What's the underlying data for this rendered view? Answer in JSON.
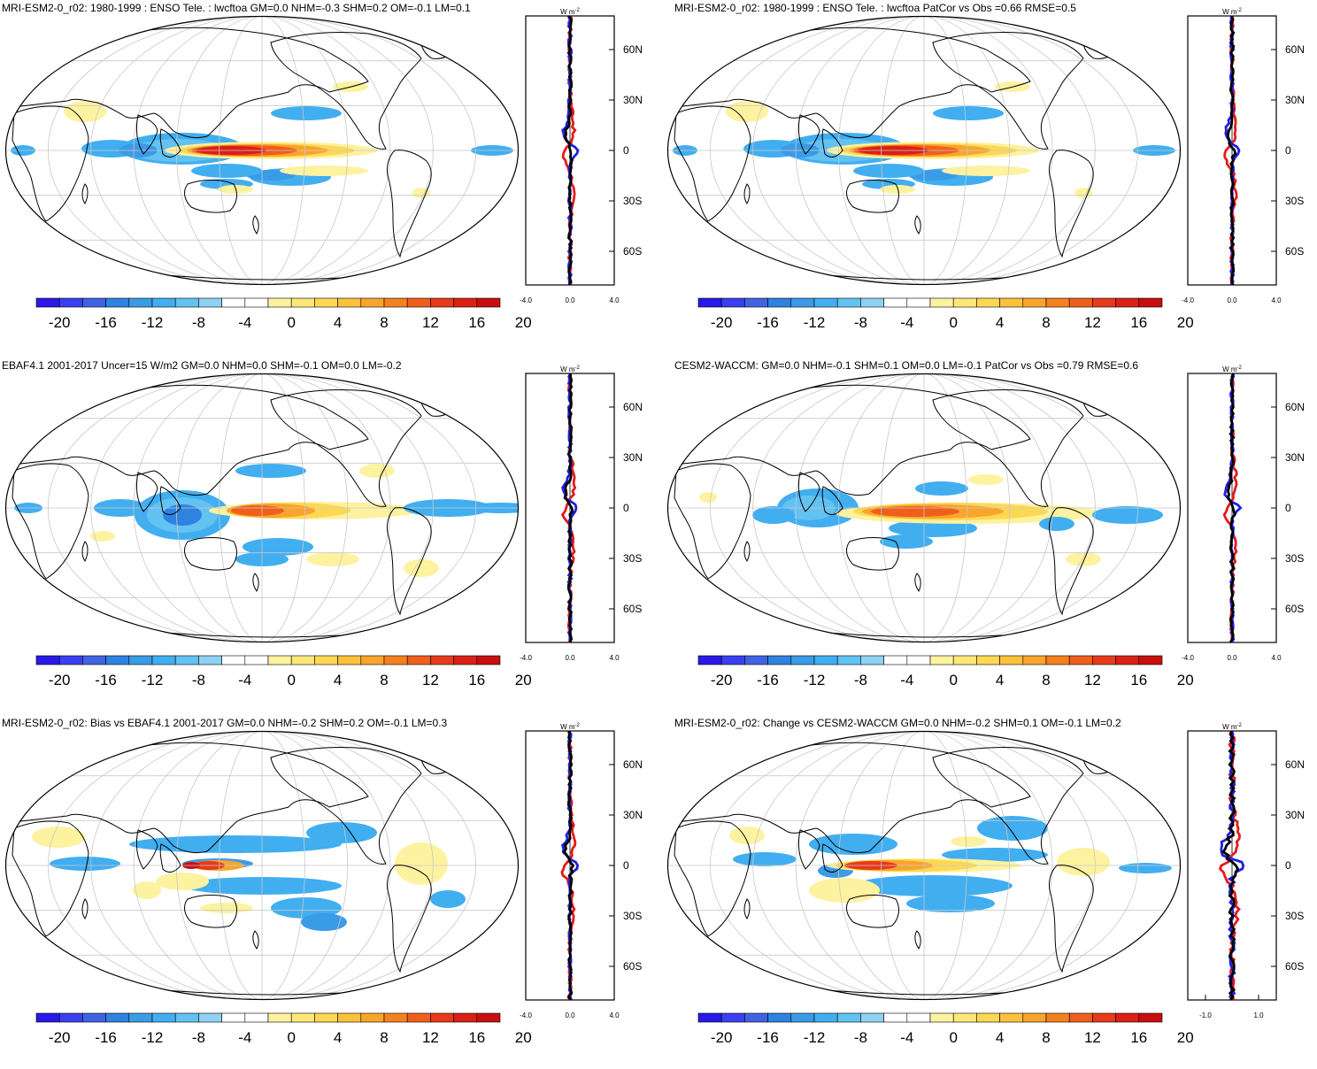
{
  "colors": {
    "colorbar": [
      "#2a18e8",
      "#3a3ff0",
      "#3f63e3",
      "#2f82e0",
      "#3a9be6",
      "#41aef0",
      "#62c2f2",
      "#8ed2f2",
      "#ffffff",
      "#ffffff",
      "#fdf2a0",
      "#fde779",
      "#fed854",
      "#fbc13b",
      "#f9a42c",
      "#f48120",
      "#ef5f1c",
      "#e63a1b",
      "#da1f15",
      "#c80f0f"
    ],
    "black": "#000000",
    "blue": "#1f1fdc",
    "red": "#e41a1c",
    "land": "#ffffff",
    "grid": "#c8c8c8"
  },
  "colorbar": {
    "tick_labels": [
      "-20",
      "-16",
      "-12",
      "-8",
      "-4",
      "0",
      "4",
      "8",
      "12",
      "16",
      "20"
    ]
  },
  "profile_axis": {
    "unit": "W m",
    "unit_sup": "-2",
    "lat_labels": [
      "60N",
      "30N",
      "0",
      "30S",
      "60S"
    ]
  },
  "panels": [
    {
      "id": "model",
      "title": "MRI-ESM2-0_r02: 1980-1999 : ENSO Tele. : lwcftoa GM=0.0 NHM=-0.3 SHM=0.2 OM=-0.1 LM=0.1",
      "xticks": [
        "-4.0",
        "0.0",
        "4.0"
      ],
      "pattern": "model"
    },
    {
      "id": "model-vs-obs",
      "title": "MRI-ESM2-0_r02: 1980-1999 : ENSO Tele. : lwcftoa PatCor vs Obs =0.66 RMSE=0.5",
      "xticks": [
        "-4.0",
        "0.0",
        "4.0"
      ],
      "pattern": "model"
    },
    {
      "id": "obs",
      "title": "EBAF4.1 2001-2017 Uncer=15 W/m2 GM=0.0 NHM=0.0 SHM=-0.1 OM=0.0 LM=-0.2",
      "xticks": [
        "-4.0",
        "0.0",
        "4.0"
      ],
      "pattern": "obs"
    },
    {
      "id": "reference-model",
      "title": "CESM2-WACCM: GM=0.0 NHM=-0.1 SHM=0.1 OM=0.0 LM=-0.1 PatCor vs Obs =0.79 RMSE=0.6",
      "xticks": [
        "-4.0",
        "0.0",
        "4.0"
      ],
      "pattern": "ref"
    },
    {
      "id": "bias",
      "title": "MRI-ESM2-0_r02: Bias vs EBAF4.1 2001-2017 GM=0.0 NHM=-0.2 SHM=0.2 OM=-0.1 LM=0.3",
      "xticks": [
        "-4.0",
        "0.0",
        "4.0"
      ],
      "pattern": "bias"
    },
    {
      "id": "change",
      "title": "MRI-ESM2-0_r02: Change vs CESM2-WACCM GM=0.0 NHM=-0.2 SHM=0.1 OM=-0.1 LM=0.2",
      "xticks": [
        "-1.0",
        "1.0"
      ],
      "pattern": "change"
    }
  ]
}
